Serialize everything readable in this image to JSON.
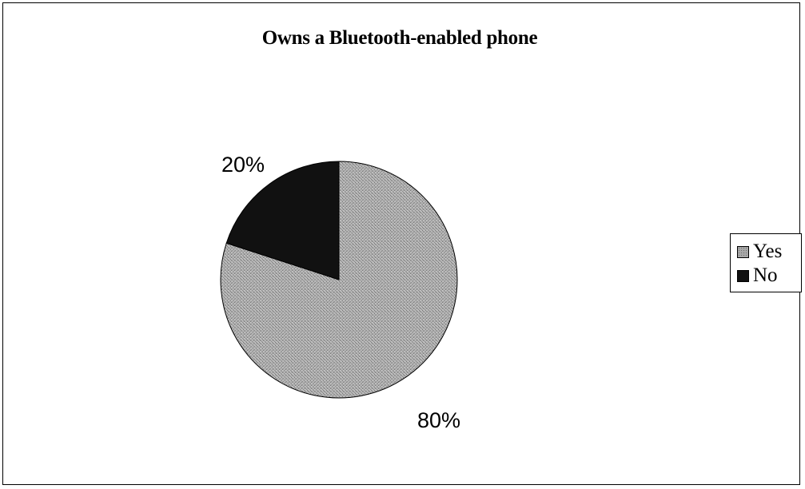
{
  "chart_data": {
    "type": "pie",
    "title": "Owns a Bluetooth-enabled phone",
    "categories": [
      "Yes",
      "No"
    ],
    "values": [
      80,
      20
    ],
    "labels": [
      "80%",
      "20%"
    ],
    "colors": [
      "#a8a8a8",
      "#111111"
    ],
    "legend_position": "right"
  },
  "legend": {
    "items": [
      {
        "label": "Yes",
        "color": "#a8a8a8"
      },
      {
        "label": "No",
        "color": "#111111"
      }
    ]
  }
}
